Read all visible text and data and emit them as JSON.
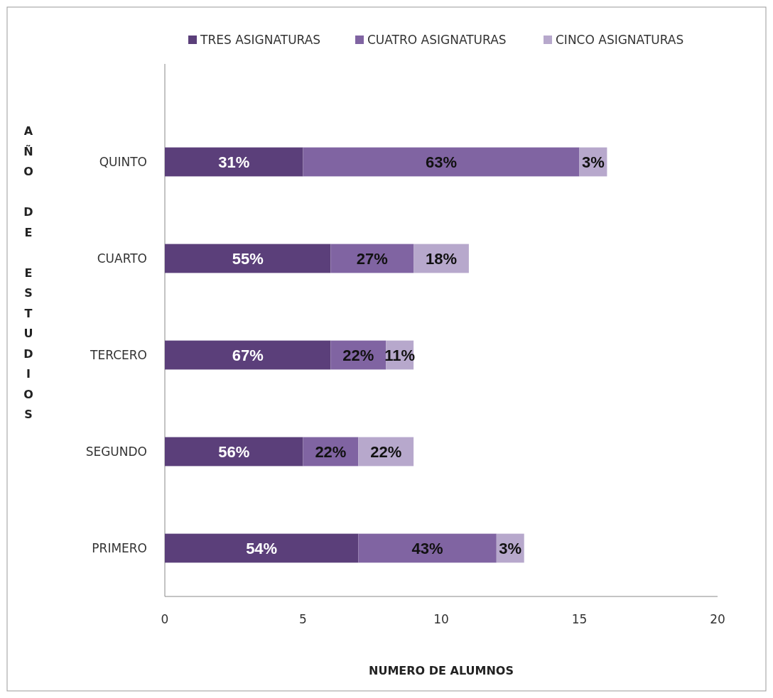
{
  "chart_data": {
    "type": "bar",
    "orientation": "horizontal",
    "stacked": true,
    "xlabel": "NUMERO DE ALUMNOS",
    "ylabel": "AÑO DE ESTUDIOS",
    "categories": [
      "QUINTO",
      "CUARTO",
      "TERCERO",
      "SEGUNDO",
      "PRIMERO"
    ],
    "series": [
      {
        "name": "TRES ASIGNATURAS",
        "color": "#5b3f7a",
        "values": [
          5,
          6,
          6,
          5,
          7
        ]
      },
      {
        "name": "CUATRO ASIGNATURAS",
        "color": "#8064a2",
        "values": [
          10,
          3,
          2,
          2,
          5
        ]
      },
      {
        "name": "CINCO ASIGNATURAS",
        "color": "#b7a8cc",
        "values": [
          1,
          2,
          1,
          2,
          1
        ]
      }
    ],
    "annotations": [
      "31%",
      "63%",
      "3%",
      "55%",
      "27%",
      "18%",
      "67%",
      "22%",
      "11%",
      "56%",
      "22%",
      "22%",
      "54%",
      "43%",
      "3%"
    ],
    "xlim": [
      0,
      20
    ],
    "xticks": [
      0,
      5,
      10,
      15,
      20
    ],
    "grid": false,
    "legend": "top"
  }
}
